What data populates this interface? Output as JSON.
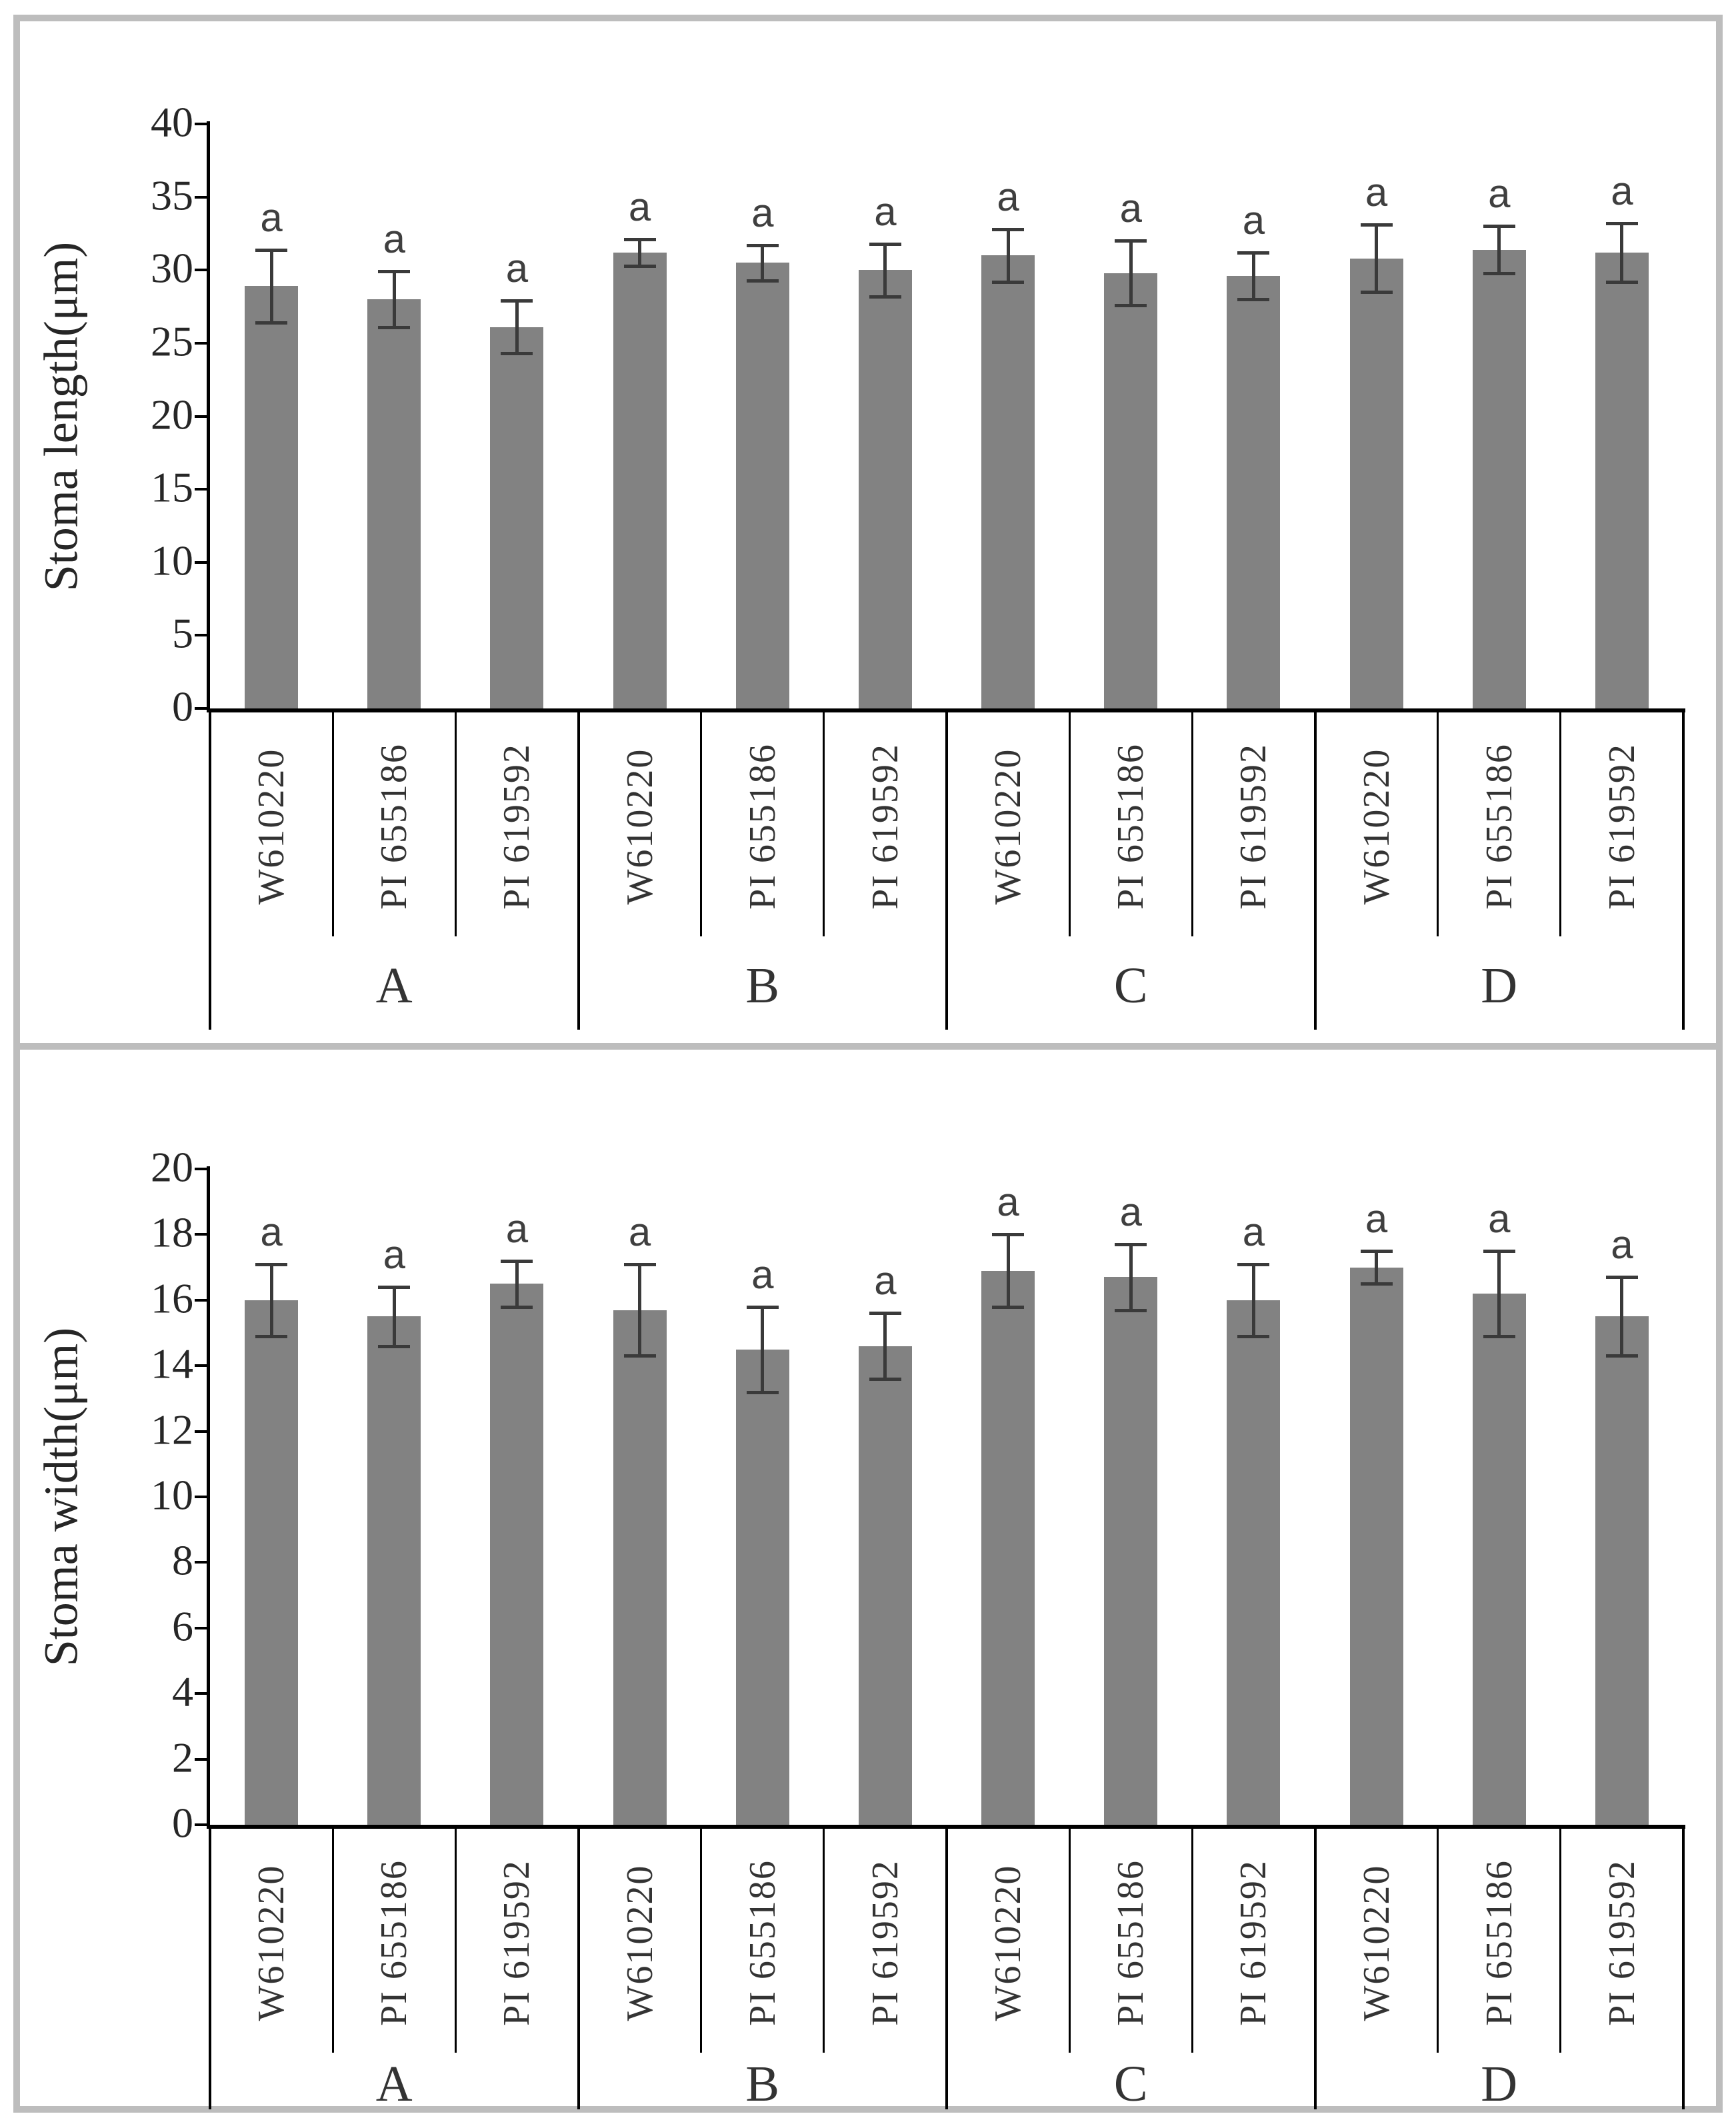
{
  "figure": {
    "significance_letter": "a",
    "bar_color": "#828282",
    "error_bar_color": "#3a3a3a",
    "axis_color": "#000000",
    "frame_color": "#bdbdbd",
    "text_color": "#262626"
  },
  "chart_data": [
    {
      "type": "bar",
      "title": "",
      "xlabel": "",
      "ylabel": "Stoma length(μm)",
      "ylim": [
        0,
        40
      ],
      "ytick_step": 5,
      "yticks": [
        40,
        35,
        30,
        25,
        20,
        15,
        10,
        5,
        0
      ],
      "grid": false,
      "legend": "none",
      "groups": [
        "A",
        "B",
        "C",
        "D"
      ],
      "categories": [
        "W610220",
        "PI 655186",
        "PI 619592"
      ],
      "bar_annotation_on_every_bar": "a",
      "series": [
        {
          "group": "A",
          "values": [
            28.9,
            28.0,
            26.1
          ],
          "errors": [
            2.5,
            1.9,
            1.8
          ]
        },
        {
          "group": "B",
          "values": [
            31.2,
            30.5,
            30.0
          ],
          "errors": [
            0.9,
            1.2,
            1.8
          ]
        },
        {
          "group": "C",
          "values": [
            31.0,
            29.8,
            29.6
          ],
          "errors": [
            1.8,
            2.2,
            1.6
          ]
        },
        {
          "group": "D",
          "values": [
            30.8,
            31.4,
            31.2
          ],
          "errors": [
            2.3,
            1.6,
            2.0
          ]
        }
      ]
    },
    {
      "type": "bar",
      "title": "",
      "xlabel": "",
      "ylabel": "Stoma width(μm)",
      "ylim": [
        0,
        20
      ],
      "ytick_step": 2,
      "yticks": [
        20,
        18,
        16,
        14,
        12,
        10,
        8,
        6,
        4,
        2,
        0
      ],
      "grid": false,
      "legend": "none",
      "groups": [
        "A",
        "B",
        "C",
        "D"
      ],
      "categories": [
        "W610220",
        "PI 655186",
        "PI 619592"
      ],
      "bar_annotation_on_every_bar": "a",
      "series": [
        {
          "group": "A",
          "values": [
            16.0,
            15.5,
            16.5
          ],
          "errors": [
            1.1,
            0.9,
            0.7
          ]
        },
        {
          "group": "B",
          "values": [
            15.7,
            14.5,
            14.6
          ],
          "errors": [
            1.4,
            1.3,
            1.0
          ]
        },
        {
          "group": "C",
          "values": [
            16.9,
            16.7,
            16.0
          ],
          "errors": [
            1.1,
            1.0,
            1.1
          ]
        },
        {
          "group": "D",
          "values": [
            17.0,
            16.2,
            15.5
          ],
          "errors": [
            0.5,
            1.3,
            1.2
          ]
        }
      ]
    }
  ]
}
